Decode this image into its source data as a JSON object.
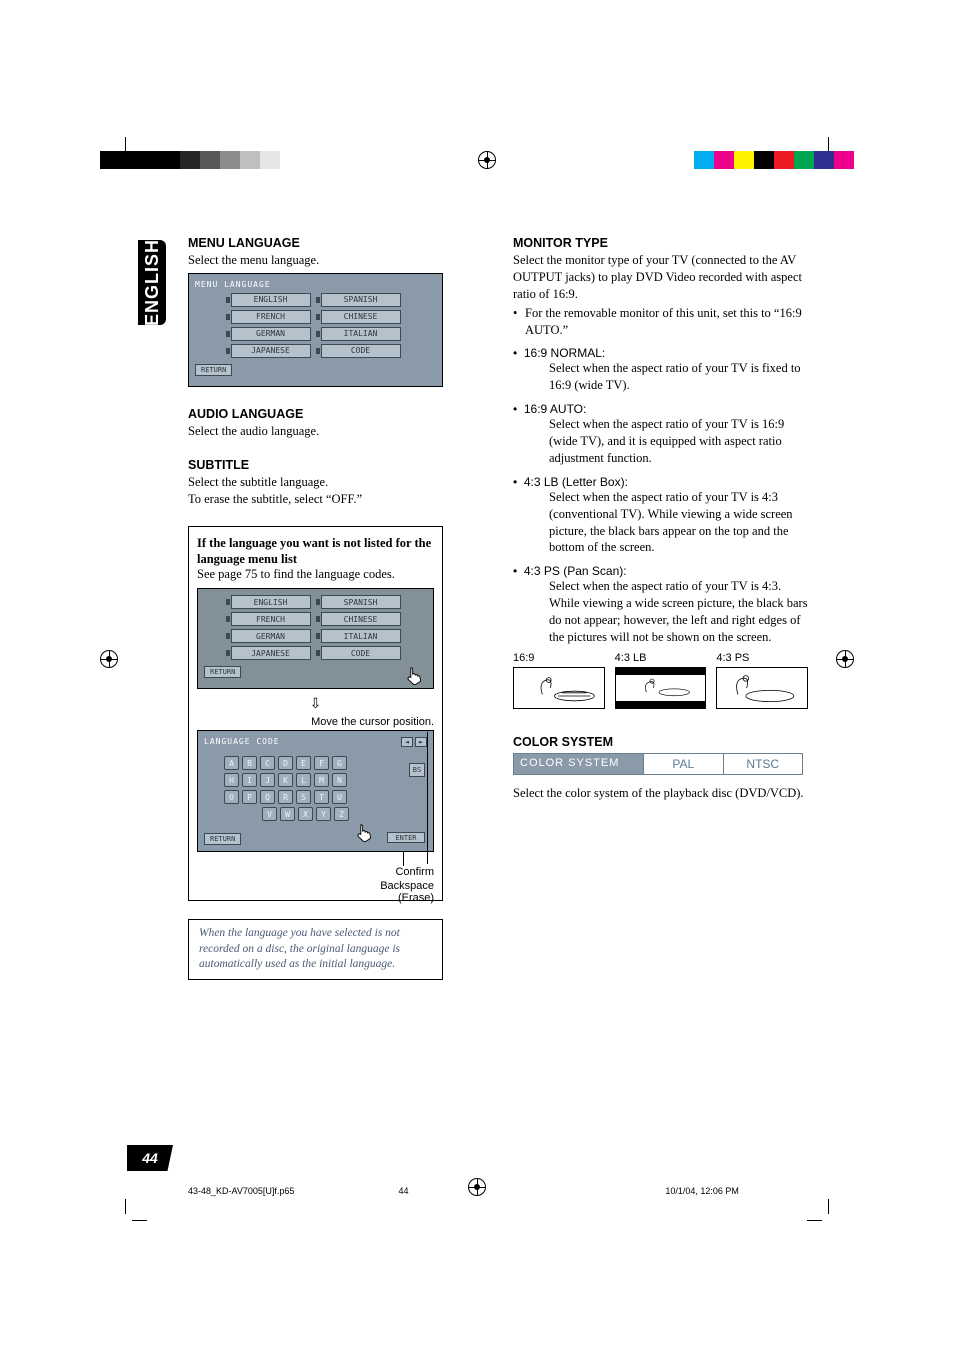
{
  "print_marks": {
    "color_swatches": [
      "#00aeef",
      "#ec008c",
      "#fff200",
      "#000000",
      "#ed1c24",
      "#00a651",
      "#2e3192",
      "#ec008c"
    ]
  },
  "side_tab": {
    "label": "ENGLISH"
  },
  "left": {
    "menu_language": {
      "title": "MENU LANGUAGE",
      "desc": "Select the menu language.",
      "screen_header": "MENU LANGUAGE",
      "col1": [
        "ENGLISH",
        "FRENCH",
        "GERMAN",
        "JAPANESE"
      ],
      "col2": [
        "SPANISH",
        "CHINESE",
        "ITALIAN",
        "CODE"
      ],
      "return": "RETURN"
    },
    "audio_language": {
      "title": "AUDIO LANGUAGE",
      "desc": "Select the audio language."
    },
    "subtitle": {
      "title": "SUBTITLE",
      "desc1": "Select the subtitle language.",
      "desc2": "To erase the subtitle, select “OFF.”"
    },
    "info_box": {
      "line1": "If the language you want is not listed for the language menu list",
      "line2": "See page 75 to find the language codes."
    },
    "screen2": {
      "col1": [
        "ENGLISH",
        "FRENCH",
        "GERMAN",
        "JAPANESE"
      ],
      "col2": [
        "SPANISH",
        "CHINESE",
        "ITALIAN",
        "CODE"
      ],
      "return": "RETURN"
    },
    "cursor_caption": "Move the cursor position.",
    "kb": {
      "header": "LANGUAGE CODE",
      "row1": [
        "A",
        "B",
        "C",
        "D",
        "E",
        "F",
        "G"
      ],
      "row2": [
        "H",
        "I",
        "J",
        "K",
        "L",
        "M",
        "N"
      ],
      "row3": [
        "O",
        "P",
        "Q",
        "R",
        "S",
        "T",
        "U"
      ],
      "row4": [
        "V",
        "W",
        "X",
        "Y",
        "Z"
      ],
      "bs": "BS",
      "enter": "ENTER",
      "return": "RETURN"
    },
    "callouts": {
      "confirm": "Confirm",
      "backspace": "Backspace",
      "erase": "(Erase)"
    },
    "note": "When the language you have selected is not recorded on a disc, the original language is automatically used as the initial language."
  },
  "right": {
    "monitor_type": {
      "title": "MONITOR TYPE",
      "desc": "Select the monitor type of your TV (connected to the AV OUTPUT jacks) to play DVD Video recorded with aspect ratio of 16:9.",
      "removable": "For the removable monitor of this unit, set this to “16:9 AUTO.”",
      "items": [
        {
          "label": "16:9 NORMAL:",
          "body": "Select when the aspect ratio of your TV is fixed to 16:9 (wide TV)."
        },
        {
          "label": "16:9 AUTO:",
          "body": "Select when the aspect ratio of your TV is 16:9 (wide TV), and it is equipped with aspect ratio adjustment function."
        },
        {
          "label": "4:3 LB (Letter Box):",
          "body": "Select when the aspect ratio of your TV is 4:3 (conventional TV). While viewing a wide screen picture, the black bars appear on the top and the bottom of the screen."
        },
        {
          "label": "4:3 PS (Pan Scan):",
          "body": "Select when the aspect ratio of your TV is 4:3. While viewing a wide screen picture, the black bars do not appear; however, the left and right edges of the pictures will not be shown on the screen."
        }
      ],
      "aspect_labels": [
        "16:9",
        "4:3 LB",
        "4:3 PS"
      ]
    },
    "color_system": {
      "title": "COLOR SYSTEM",
      "bar_label": "COLOR SYSTEM",
      "opt1": "PAL",
      "opt2": "NTSC",
      "desc": "Select the color system of the playback disc (DVD/VCD)."
    }
  },
  "page_number": "44",
  "footer": {
    "file": "43-48_KD-AV7005[U]f.p65",
    "page": "44",
    "timestamp": "10/1/04, 12:06 PM"
  },
  "colors": {
    "menu_bg": "#8a9aa8",
    "btn_bg": "#b5c2cc",
    "btn_border": "#3a4a55",
    "note_text": "#4a5a75"
  }
}
